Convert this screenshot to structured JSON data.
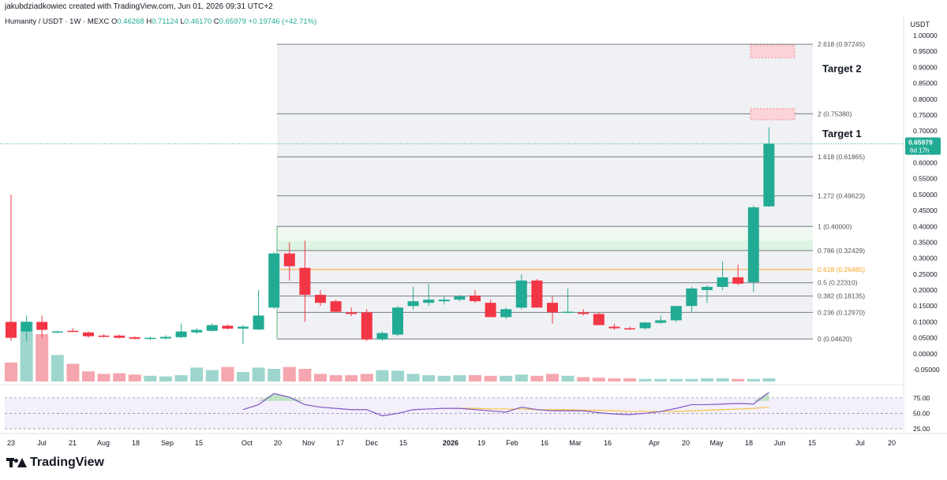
{
  "header": {
    "credit": "jakubdziadkowiec created with TradingView.com, Jun 01, 2026 09:31 UTC+2",
    "symbol": "Humanity / USDT · 1W · MEXC",
    "ohlc": {
      "o_label": "O",
      "o": "0.46268",
      "h_label": "H",
      "h": "0.71124",
      "l_label": "L",
      "l": "0.46170",
      "c_label": "C",
      "c": "0.65979",
      "change": "+0.19746 (+42.71%)"
    },
    "currency": "USDT"
  },
  "brand": {
    "name": "TradingView"
  },
  "colors": {
    "up": "#22ab94",
    "down": "#f23645",
    "up_vol": "#9ed6cd",
    "down_vol": "#f5a6ae",
    "rsi": "#7e57c2",
    "rsi_ma": "#f6c343",
    "fib_gold": "#f5a623",
    "zone_green": "#d9f2e0",
    "zone_red": "#fcd3d6"
  },
  "chart_data": {
    "type": "candlestick",
    "timeframe": "1W",
    "price_axis": {
      "min": -0.05,
      "max": 1.0,
      "ticks": [
        "1.00000",
        "0.95000",
        "0.90000",
        "0.85000",
        "0.80000",
        "0.75000",
        "0.70000",
        "0.65000",
        "0.60000",
        "0.55000",
        "0.50000",
        "0.45000",
        "0.40000",
        "0.35000",
        "0.30000",
        "0.25000",
        "0.20000",
        "0.15000",
        "0.10000",
        "0.05000",
        "0.00000",
        "-0.05000"
      ]
    },
    "time_labels": [
      "23",
      "Jul",
      "21",
      "Aug",
      "18",
      "Sep",
      "15",
      "Oct",
      "20",
      "Nov",
      "17",
      "Dec",
      "15",
      "2026",
      "19",
      "Feb",
      "16",
      "Mar",
      "16",
      "Apr",
      "20",
      "May",
      "18",
      "Jun",
      "15",
      "Jul",
      "20"
    ],
    "candles": [
      {
        "o": 0.1,
        "h": 0.5,
        "l": 0.04,
        "c": 0.05
      },
      {
        "o": 0.07,
        "h": 0.12,
        "l": 0.04,
        "c": 0.1
      },
      {
        "o": 0.1,
        "h": 0.12,
        "l": 0.05,
        "c": 0.075
      },
      {
        "o": 0.069,
        "h": 0.072,
        "l": 0.065,
        "c": 0.07
      },
      {
        "o": 0.072,
        "h": 0.08,
        "l": 0.068,
        "c": 0.07
      },
      {
        "o": 0.067,
        "h": 0.07,
        "l": 0.05,
        "c": 0.055
      },
      {
        "o": 0.057,
        "h": 0.062,
        "l": 0.051,
        "c": 0.053
      },
      {
        "o": 0.057,
        "h": 0.06,
        "l": 0.048,
        "c": 0.05
      },
      {
        "o": 0.052,
        "h": 0.055,
        "l": 0.045,
        "c": 0.047
      },
      {
        "o": 0.048,
        "h": 0.054,
        "l": 0.043,
        "c": 0.05
      },
      {
        "o": 0.048,
        "h": 0.058,
        "l": 0.044,
        "c": 0.053
      },
      {
        "o": 0.052,
        "h": 0.095,
        "l": 0.05,
        "c": 0.07
      },
      {
        "o": 0.067,
        "h": 0.08,
        "l": 0.062,
        "c": 0.075
      },
      {
        "o": 0.072,
        "h": 0.095,
        "l": 0.07,
        "c": 0.09
      },
      {
        "o": 0.088,
        "h": 0.092,
        "l": 0.076,
        "c": 0.079
      },
      {
        "o": 0.079,
        "h": 0.09,
        "l": 0.03,
        "c": 0.085
      },
      {
        "o": 0.076,
        "h": 0.2,
        "l": 0.075,
        "c": 0.12
      },
      {
        "o": 0.145,
        "h": 0.32,
        "l": 0.14,
        "c": 0.315
      },
      {
        "o": 0.315,
        "h": 0.35,
        "l": 0.23,
        "c": 0.275
      },
      {
        "o": 0.27,
        "h": 0.355,
        "l": 0.1,
        "c": 0.185
      },
      {
        "o": 0.185,
        "h": 0.2,
        "l": 0.15,
        "c": 0.16
      },
      {
        "o": 0.165,
        "h": 0.17,
        "l": 0.13,
        "c": 0.132
      },
      {
        "o": 0.13,
        "h": 0.145,
        "l": 0.118,
        "c": 0.125
      },
      {
        "o": 0.13,
        "h": 0.14,
        "l": 0.04,
        "c": 0.045
      },
      {
        "o": 0.045,
        "h": 0.07,
        "l": 0.04,
        "c": 0.065
      },
      {
        "o": 0.06,
        "h": 0.15,
        "l": 0.055,
        "c": 0.145
      },
      {
        "o": 0.15,
        "h": 0.21,
        "l": 0.14,
        "c": 0.165
      },
      {
        "o": 0.16,
        "h": 0.22,
        "l": 0.15,
        "c": 0.17
      },
      {
        "o": 0.165,
        "h": 0.18,
        "l": 0.155,
        "c": 0.17
      },
      {
        "o": 0.17,
        "h": 0.185,
        "l": 0.165,
        "c": 0.18
      },
      {
        "o": 0.183,
        "h": 0.2,
        "l": 0.16,
        "c": 0.165
      },
      {
        "o": 0.16,
        "h": 0.17,
        "l": 0.115,
        "c": 0.115
      },
      {
        "o": 0.115,
        "h": 0.145,
        "l": 0.11,
        "c": 0.14
      },
      {
        "o": 0.145,
        "h": 0.25,
        "l": 0.14,
        "c": 0.23
      },
      {
        "o": 0.23,
        "h": 0.235,
        "l": 0.145,
        "c": 0.145
      },
      {
        "o": 0.16,
        "h": 0.18,
        "l": 0.095,
        "c": 0.13
      },
      {
        "o": 0.13,
        "h": 0.205,
        "l": 0.128,
        "c": 0.132
      },
      {
        "o": 0.13,
        "h": 0.14,
        "l": 0.12,
        "c": 0.125
      },
      {
        "o": 0.125,
        "h": 0.13,
        "l": 0.09,
        "c": 0.09
      },
      {
        "o": 0.085,
        "h": 0.095,
        "l": 0.075,
        "c": 0.08
      },
      {
        "o": 0.08,
        "h": 0.085,
        "l": 0.075,
        "c": 0.078
      },
      {
        "o": 0.08,
        "h": 0.1,
        "l": 0.075,
        "c": 0.098
      },
      {
        "o": 0.097,
        "h": 0.12,
        "l": 0.094,
        "c": 0.105
      },
      {
        "o": 0.105,
        "h": 0.15,
        "l": 0.1,
        "c": 0.15
      },
      {
        "o": 0.15,
        "h": 0.21,
        "l": 0.13,
        "c": 0.205
      },
      {
        "o": 0.2,
        "h": 0.215,
        "l": 0.16,
        "c": 0.21
      },
      {
        "o": 0.21,
        "h": 0.29,
        "l": 0.2,
        "c": 0.24
      },
      {
        "o": 0.24,
        "h": 0.28,
        "l": 0.215,
        "c": 0.22
      },
      {
        "o": 0.225,
        "h": 0.465,
        "l": 0.195,
        "c": 0.46
      },
      {
        "o": 0.463,
        "h": 0.711,
        "l": 0.462,
        "c": 0.66
      }
    ],
    "volume": [
      0.3,
      0.95,
      0.75,
      0.42,
      0.28,
      0.16,
      0.12,
      0.13,
      0.11,
      0.09,
      0.08,
      0.1,
      0.22,
      0.18,
      0.23,
      0.15,
      0.22,
      0.2,
      0.23,
      0.2,
      0.12,
      0.1,
      0.1,
      0.12,
      0.18,
      0.17,
      0.12,
      0.1,
      0.09,
      0.1,
      0.1,
      0.09,
      0.09,
      0.11,
      0.09,
      0.12,
      0.09,
      0.07,
      0.06,
      0.05,
      0.05,
      0.04,
      0.04,
      0.04,
      0.04,
      0.05,
      0.05,
      0.04,
      0.04,
      0.05
    ],
    "rsi": {
      "levels": [
        "75.00",
        "50.00",
        "25.00"
      ],
      "values": [
        null,
        null,
        null,
        null,
        null,
        null,
        null,
        null,
        null,
        null,
        null,
        null,
        null,
        null,
        null,
        56,
        64,
        82,
        76,
        64,
        60,
        58,
        56,
        56,
        46,
        50,
        56,
        57,
        58,
        58,
        56,
        54,
        52,
        60,
        56,
        54,
        54,
        54,
        51,
        49,
        48,
        50,
        53,
        58,
        64,
        64,
        65,
        66,
        65,
        84
      ],
      "ma": [
        null,
        null,
        null,
        null,
        null,
        null,
        null,
        null,
        null,
        null,
        null,
        null,
        null,
        null,
        null,
        null,
        null,
        null,
        null,
        null,
        null,
        null,
        null,
        null,
        null,
        null,
        null,
        null,
        58,
        58,
        58,
        57,
        57,
        57,
        56,
        56,
        56,
        55,
        55,
        54,
        53,
        53,
        53,
        53,
        54,
        55,
        56,
        57,
        58,
        60
      ]
    },
    "fib": {
      "levels": [
        {
          "label": "0 (0.04620)",
          "value": 0.0462
        },
        {
          "label": "0.236 (0.12970)",
          "value": 0.1297
        },
        {
          "label": "0.382 (0.18135)",
          "value": 0.18135
        },
        {
          "label": "0.5 (0.22310)",
          "value": 0.2231
        },
        {
          "label": "0.618 (0.26485)",
          "value": 0.26485
        },
        {
          "label": "0.786 (0.32429)",
          "value": 0.32429
        },
        {
          "label": "1 (0.40000)",
          "value": 0.4
        },
        {
          "label": "1.272 (0.49623)",
          "value": 0.49623
        },
        {
          "label": "1.618 (0.61865)",
          "value": 0.61865
        },
        {
          "label": "2 (0.75380)",
          "value": 0.7538
        },
        {
          "label": "2.618 (0.97245)",
          "value": 0.97245
        }
      ]
    },
    "annotations": [
      {
        "text": "Target 1",
        "value": 0.75
      },
      {
        "text": "Target 2",
        "value": 0.96
      }
    ],
    "last_price": {
      "value": 0.65979,
      "label": "0.65979",
      "countdown": "6d 17h"
    }
  }
}
